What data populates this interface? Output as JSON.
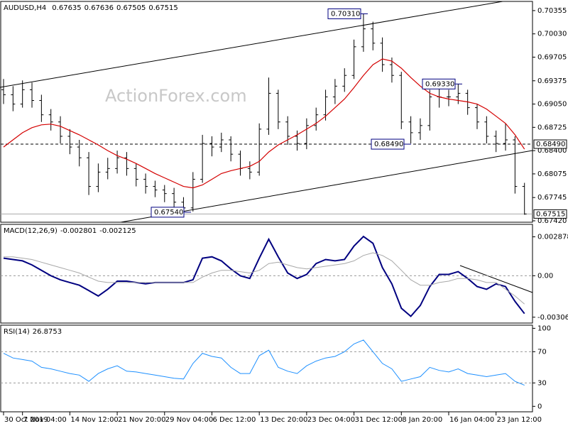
{
  "chart_data": [
    {
      "type": "ohlc",
      "title": "AUDUSD,H4",
      "header_values": [
        0.67635,
        0.67636,
        0.67505,
        0.67515
      ],
      "watermark": "ActionForex.com",
      "color": "#000000",
      "categories": [
        "30 Oct 2019",
        null,
        "7 Nov 04:00",
        null,
        null,
        null,
        null,
        "14 Nov 12:00",
        null,
        null,
        null,
        null,
        "21 Nov 20:00",
        null,
        null,
        null,
        null,
        "29 Nov 04:00",
        null,
        null,
        null,
        null,
        "6 Dec 12:00",
        null,
        null,
        null,
        null,
        "13 Dec 20:00",
        null,
        null,
        null,
        null,
        "23 Dec 04:00",
        null,
        null,
        null,
        null,
        "31 Dec 12:00",
        null,
        null,
        null,
        null,
        "8 Jan 20:00",
        null,
        null,
        null,
        null,
        "16 Jan 04:00",
        null,
        null,
        null,
        null,
        "23 Jan 12:00",
        null,
        null,
        null
      ],
      "open": [
        0.6925,
        0.6918,
        0.6905,
        0.6925,
        0.691,
        0.689,
        0.688,
        0.686,
        0.6845,
        0.683,
        0.679,
        0.681,
        0.6815,
        0.683,
        0.6815,
        0.68,
        0.679,
        0.6785,
        0.678,
        0.6768,
        0.676,
        0.68,
        0.685,
        0.6845,
        0.6855,
        0.6835,
        0.6815,
        0.681,
        0.687,
        0.692,
        0.688,
        0.686,
        0.685,
        0.6875,
        0.689,
        0.6915,
        0.693,
        0.6945,
        0.6985,
        0.701,
        0.699,
        0.696,
        0.6945,
        0.688,
        0.6865,
        0.6875,
        0.6915,
        0.6915,
        0.6915,
        0.692,
        0.69,
        0.688,
        0.686,
        0.685,
        0.6855,
        0.679
      ],
      "high": [
        0.694,
        0.693,
        0.6938,
        0.6935,
        0.6918,
        0.6898,
        0.6888,
        0.687,
        0.6855,
        0.6838,
        0.6822,
        0.683,
        0.684,
        0.6838,
        0.6822,
        0.6808,
        0.6798,
        0.6792,
        0.6788,
        0.6775,
        0.681,
        0.6862,
        0.686,
        0.6865,
        0.686,
        0.684,
        0.6825,
        0.6878,
        0.6942,
        0.6925,
        0.6888,
        0.6868,
        0.6885,
        0.69,
        0.6925,
        0.694,
        0.6955,
        0.6995,
        0.7031,
        0.702,
        0.6998,
        0.697,
        0.695,
        0.6888,
        0.6885,
        0.6925,
        0.6928,
        0.6925,
        0.6933,
        0.6925,
        0.6905,
        0.6888,
        0.6868,
        0.6878,
        0.686,
        0.6795
      ],
      "low": [
        0.6905,
        0.6895,
        0.69,
        0.69,
        0.688,
        0.6868,
        0.685,
        0.6835,
        0.6818,
        0.6778,
        0.6782,
        0.68,
        0.6808,
        0.6805,
        0.679,
        0.678,
        0.6775,
        0.6768,
        0.6758,
        0.6754,
        0.6755,
        0.6795,
        0.6832,
        0.6838,
        0.6825,
        0.6805,
        0.68,
        0.6805,
        0.6862,
        0.687,
        0.6848,
        0.684,
        0.6842,
        0.6868,
        0.6882,
        0.6905,
        0.6922,
        0.694,
        0.6978,
        0.698,
        0.695,
        0.6935,
        0.687,
        0.685,
        0.6855,
        0.6868,
        0.69,
        0.6902,
        0.6905,
        0.689,
        0.687,
        0.685,
        0.6838,
        0.684,
        0.678,
        0.67505
      ],
      "close": [
        0.6918,
        0.6905,
        0.6925,
        0.691,
        0.689,
        0.688,
        0.686,
        0.6845,
        0.683,
        0.679,
        0.681,
        0.6815,
        0.683,
        0.6815,
        0.68,
        0.679,
        0.6785,
        0.678,
        0.6768,
        0.676,
        0.68,
        0.685,
        0.6845,
        0.6855,
        0.6835,
        0.6815,
        0.681,
        0.687,
        0.692,
        0.688,
        0.686,
        0.685,
        0.6875,
        0.689,
        0.6915,
        0.693,
        0.6945,
        0.6985,
        0.701,
        0.699,
        0.696,
        0.6945,
        0.688,
        0.6865,
        0.6875,
        0.6915,
        0.6915,
        0.6915,
        0.692,
        0.69,
        0.688,
        0.686,
        0.685,
        0.6855,
        0.679,
        0.67515
      ],
      "overlays": [
        {
          "color": "#d40000",
          "values": [
            0.6845,
            0.6855,
            0.6865,
            0.6872,
            0.6876,
            0.6877,
            0.6874,
            0.6868,
            0.6862,
            0.6855,
            0.6848,
            0.684,
            0.6833,
            0.6828,
            0.6822,
            0.6815,
            0.6808,
            0.6802,
            0.6796,
            0.679,
            0.6788,
            0.6792,
            0.68,
            0.6808,
            0.6812,
            0.6815,
            0.6818,
            0.6825,
            0.6838,
            0.6848,
            0.6855,
            0.6862,
            0.687,
            0.6878,
            0.6888,
            0.69,
            0.6912,
            0.6928,
            0.6945,
            0.696,
            0.6968,
            0.6965,
            0.6955,
            0.6942,
            0.693,
            0.692,
            0.6915,
            0.6912,
            0.691,
            0.6908,
            0.6905,
            0.6898,
            0.6888,
            0.6878,
            0.6862,
            0.6842
          ]
        }
      ],
      "ylim": [
        0.674,
        0.70483
      ],
      "yticks": [
        0.70355,
        {
          "value": 0.7003,
          "label": "0.70030"
        },
        0.69705,
        0.69375,
        {
          "value": 0.6905,
          "label": "0.69050"
        },
        0.68725,
        {
          "value": 0.684,
          "label": "0.68400"
        },
        0.68075,
        0.67745,
        {
          "value": 0.6742,
          "label": "0.67420"
        }
      ],
      "hlines": [
        {
          "value": 0.6849,
          "label": "0.68490"
        },
        0.67515
      ],
      "annotations": [
        {
          "value": 0.7031,
          "label": "0.70310"
        },
        {
          "value": 0.6933,
          "label": "0.69330"
        },
        {
          "value": 0.6849,
          "label": "0.68490"
        },
        {
          "value": 0.6754,
          "label": "0.67540"
        }
      ]
    },
    {
      "type": "line",
      "title": "MACD(12,26,9)",
      "header_values": [
        -0.002801,
        -0.002125
      ],
      "grid": true,
      "series": [
        {
          "color": "#000080",
          "values": [
            0.0013,
            0.0012,
            0.0011,
            0.0008,
            0.0004,
            0,
            -0.0003,
            -0.0005,
            -0.0007,
            -0.0011,
            -0.0015,
            -0.001,
            -0.0004,
            -0.0004,
            -0.0005,
            -0.0006,
            -0.0005,
            -0.0005,
            -0.0005,
            -0.0005,
            -0.0003,
            0.0013,
            0.0014,
            0.0011,
            0.0005,
            0,
            -0.0002,
            0.0013,
            0.0027,
            0.0014,
            0.0002,
            -0.0002,
            0.0001,
            0.0009,
            0.0012,
            0.0011,
            0.0012,
            0.0022,
            0.0029,
            0.0024,
            0.0006,
            -0.0006,
            -0.0024,
            -0.003,
            -0.0022,
            -0.0008,
            0.0001,
            0.0001,
            0.0003,
            -0.0002,
            -0.0008,
            -0.001,
            -0.0006,
            -0.0008,
            -0.0019,
            -0.0028
          ]
        },
        {
          "color": "#a8a8a8",
          "values": [
            0.0014,
            0.0014,
            0.0013,
            0.0012,
            0.001,
            0.0008,
            0.0006,
            0.0004,
            0.0002,
            -0.0001,
            -0.0004,
            -0.0005,
            -0.0005,
            -0.0005,
            -0.0005,
            -0.0005,
            -0.0005,
            -0.0005,
            -0.0005,
            -0.0005,
            -0.0005,
            -0.0001,
            0.0002,
            0.0004,
            0.0004,
            0.0003,
            0.0002,
            0.0004,
            0.0009,
            0.001,
            0.0008,
            0.0006,
            0.0005,
            0.0006,
            0.0007,
            0.0008,
            0.0009,
            0.0011,
            0.0015,
            0.0017,
            0.0015,
            0.0011,
            0.0004,
            -0.0003,
            -0.0007,
            -0.0007,
            -0.0005,
            -0.0004,
            -0.0002,
            -0.0002,
            -0.0003,
            -0.0005,
            -0.0005,
            -0.001,
            -0.0015,
            -0.0021
          ]
        }
      ],
      "ylim": [
        -0.0035,
        0.0038
      ],
      "yticks": [
        0.002878,
        {
          "value": 0,
          "label": "0.00"
        },
        -0.003068
      ]
    },
    {
      "type": "line",
      "title": "RSI(14)",
      "header_values": [
        26.8753
      ],
      "grid": true,
      "series": [
        {
          "color": "#1e90ff",
          "values": [
            68,
            62,
            60,
            58,
            50,
            48,
            45,
            42,
            40,
            32,
            42,
            48,
            52,
            45,
            44,
            42,
            40,
            38,
            36,
            35,
            55,
            68,
            64,
            62,
            50,
            42,
            42,
            65,
            72,
            50,
            45,
            42,
            52,
            58,
            62,
            64,
            70,
            80,
            85,
            70,
            55,
            48,
            32,
            35,
            38,
            50,
            46,
            44,
            48,
            42,
            40,
            38,
            40,
            42,
            32,
            27
          ]
        }
      ],
      "ylim": [
        -7,
        104
      ],
      "yticks": [
        100,
        70,
        30,
        0
      ]
    }
  ]
}
